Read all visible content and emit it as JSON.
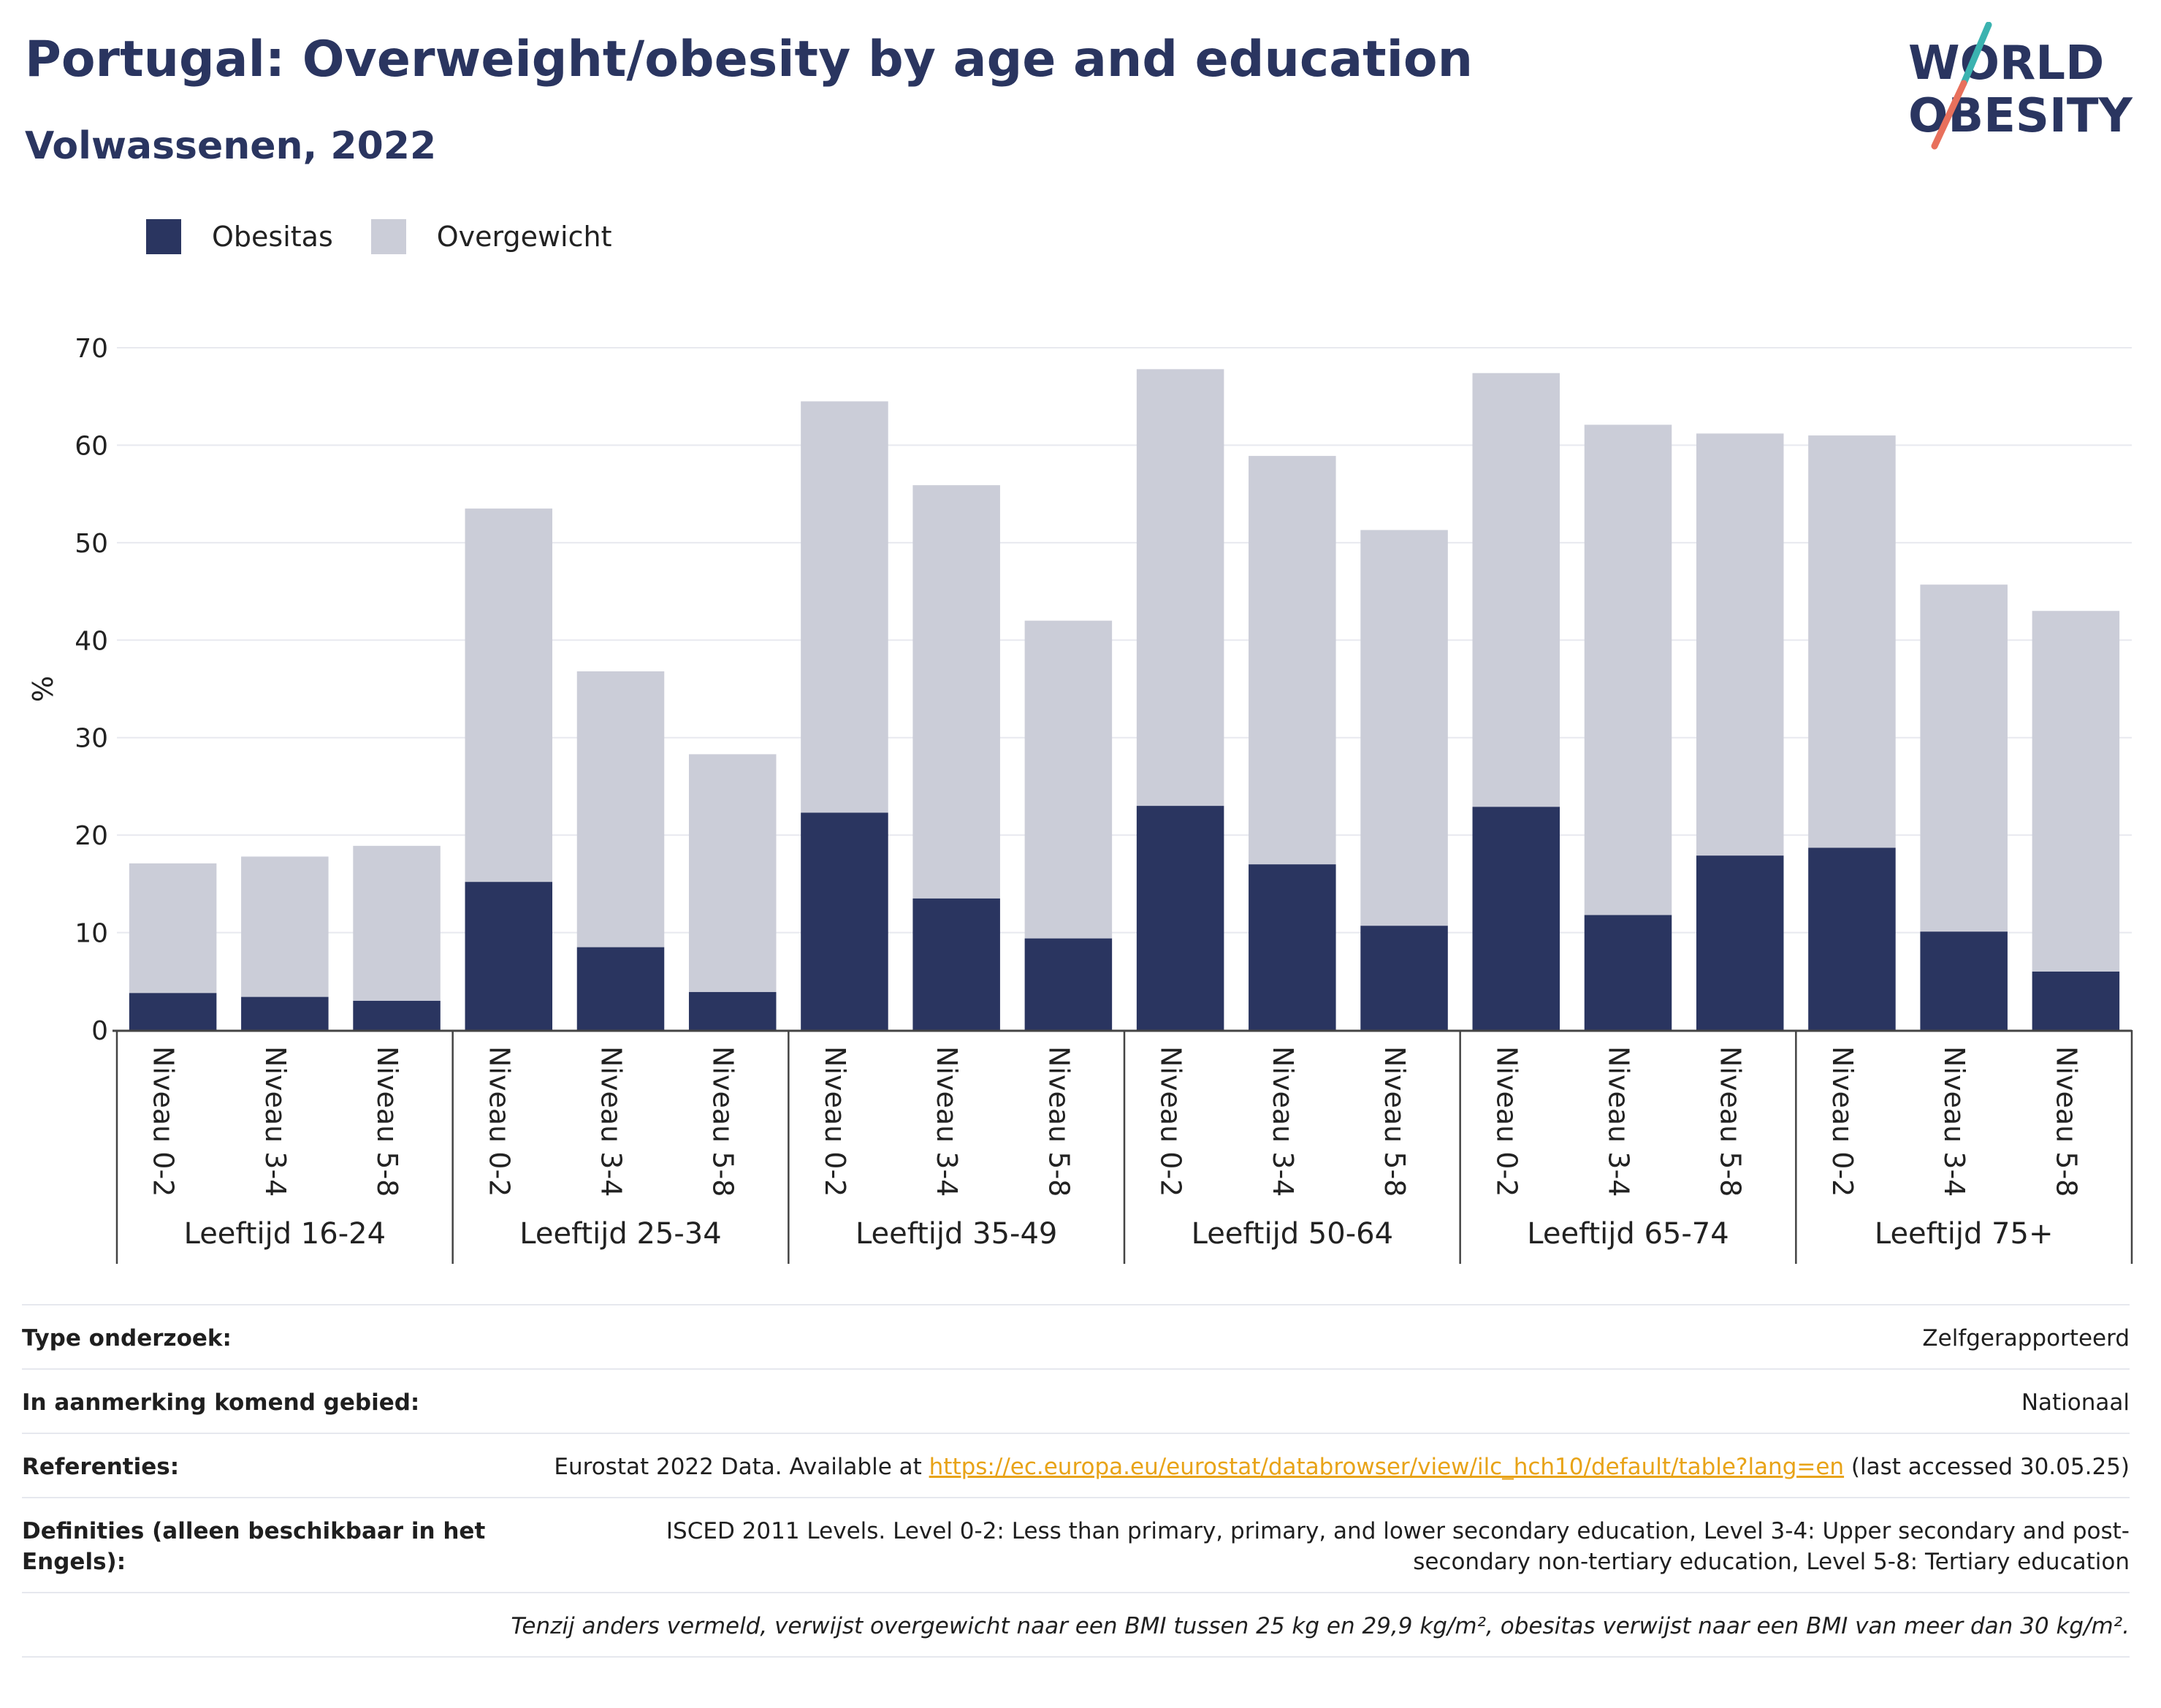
{
  "header": {
    "title": "Portugal: Overweight/obesity by age and education",
    "subtitle": "Volwassenen, 2022",
    "logo_line1": "WORLD",
    "logo_line2": "OBESITY"
  },
  "colors": {
    "obesity": "#2a3560",
    "overweight": "#cbcdd8",
    "title": "#2a3560",
    "link": "#e8a317",
    "logo_teal": "#3bb3b0",
    "logo_coral": "#e8705c"
  },
  "legend": {
    "items": [
      {
        "label": "Obesitas",
        "color": "#2a3560"
      },
      {
        "label": "Overgewicht",
        "color": "#cbcdd8"
      }
    ]
  },
  "chart_data": {
    "type": "bar",
    "stacked": true,
    "ylabel": "%",
    "ylim": [
      0,
      70
    ],
    "yticks": [
      0,
      10,
      20,
      30,
      40,
      50,
      60,
      70
    ],
    "grid": true,
    "legend_position": "top-left",
    "groups": [
      "Leeftijd 16-24",
      "Leeftijd 25-34",
      "Leeftijd 35-49",
      "Leeftijd 50-64",
      "Leeftijd 65-74",
      "Leeftijd 75+"
    ],
    "subcategories": [
      "Niveau 0-2",
      "Niveau 3-4",
      "Niveau 5-8"
    ],
    "series": [
      {
        "name": "Obesitas",
        "values": [
          3.8,
          3.4,
          3.0,
          15.2,
          8.5,
          3.9,
          22.3,
          13.5,
          9.4,
          23.0,
          17.0,
          10.7,
          22.9,
          11.8,
          17.9,
          18.7,
          10.1,
          6.0
        ]
      },
      {
        "name": "Overgewicht",
        "values": [
          13.3,
          14.4,
          15.9,
          38.3,
          28.3,
          24.4,
          42.2,
          42.4,
          32.6,
          44.8,
          41.9,
          40.6,
          44.5,
          50.3,
          43.3,
          42.3,
          35.6,
          37.0
        ]
      }
    ]
  },
  "meta": {
    "rows": [
      {
        "key": "Type onderzoek:",
        "value": "Zelfgerapporteerd"
      },
      {
        "key": "In aanmerking komend gebied:",
        "value": "Nationaal"
      }
    ],
    "references": {
      "key": "Referenties:",
      "before": "Eurostat 2022 Data. Available at ",
      "link": "https://ec.europa.eu/eurostat/databrowser/view/ilc_hch10/default/table?lang=en",
      "after": " (last accessed 30.05.25)"
    },
    "definitions": {
      "key": "Definities (alleen beschikbaar in het Engels):",
      "value": "ISCED 2011 Levels. Level 0-2: Less than primary, primary, and lower secondary education, Level 3-4: Upper secondary and post-secondary non-tertiary education, Level 5-8: Tertiary education"
    },
    "note": "Tenzij anders vermeld, verwijst overgewicht naar een BMI tussen 25 kg en 29,9 kg/m², obesitas verwijst naar een BMI van meer dan 30 kg/m²."
  }
}
